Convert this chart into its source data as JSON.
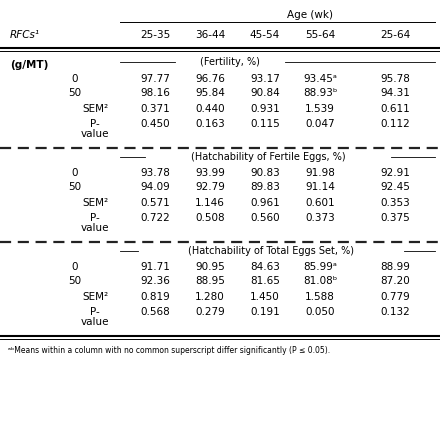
{
  "header_age": "Age (wk)",
  "col_header_left": "RFCs¹",
  "col_headers": [
    "25-35",
    "36-44",
    "45-54",
    "55-64",
    "25-64"
  ],
  "section1_label": "(Fertility, %)—",
  "section1_label_plain": "(Fertility, %)",
  "section2_label_plain": "(Hatchability of Fertile Eggs, %)",
  "section3_label_plain": "(Hatchability of Total Eggs Set, %)",
  "section1_rows": [
    {
      "label": "0",
      "values": [
        "97.77",
        "96.76",
        "93.17",
        "93.45ᵃ",
        "95.78"
      ]
    },
    {
      "label": "50",
      "values": [
        "98.16",
        "95.84",
        "90.84",
        "88.93ᵇ",
        "94.31"
      ]
    },
    {
      "label": "SEM²",
      "values": [
        "0.371",
        "0.440",
        "0.931",
        "1.539",
        "0.611"
      ]
    },
    {
      "label": "P-value",
      "values": [
        "0.450",
        "0.163",
        "0.115",
        "0.047",
        "0.112"
      ]
    }
  ],
  "section2_rows": [
    {
      "label": "0",
      "values": [
        "93.78",
        "93.99",
        "90.83",
        "91.98",
        "92.91"
      ]
    },
    {
      "label": "50",
      "values": [
        "94.09",
        "92.79",
        "89.83",
        "91.14",
        "92.45"
      ]
    },
    {
      "label": "SEM²",
      "values": [
        "0.571",
        "1.146",
        "0.961",
        "0.601",
        "0.353"
      ]
    },
    {
      "label": "P-value",
      "values": [
        "0.722",
        "0.508",
        "0.560",
        "0.373",
        "0.375"
      ]
    }
  ],
  "section3_rows": [
    {
      "label": "0",
      "values": [
        "91.71",
        "90.95",
        "84.63",
        "85.99ᵃ",
        "88.99"
      ]
    },
    {
      "label": "50",
      "values": [
        "92.36",
        "88.95",
        "81.65",
        "81.08ᵇ",
        "87.20"
      ]
    },
    {
      "label": "SEM²",
      "values": [
        "0.819",
        "1.280",
        "1.450",
        "1.588",
        "0.779"
      ]
    },
    {
      "label": "P-value",
      "values": [
        "0.568",
        "0.279",
        "0.191",
        "0.050",
        "0.132"
      ]
    }
  ],
  "footnote": "ᵃᵇMeans within a column with no common superscript differ significantly (P ≤ 0.05).",
  "bg_color": "#ffffff"
}
